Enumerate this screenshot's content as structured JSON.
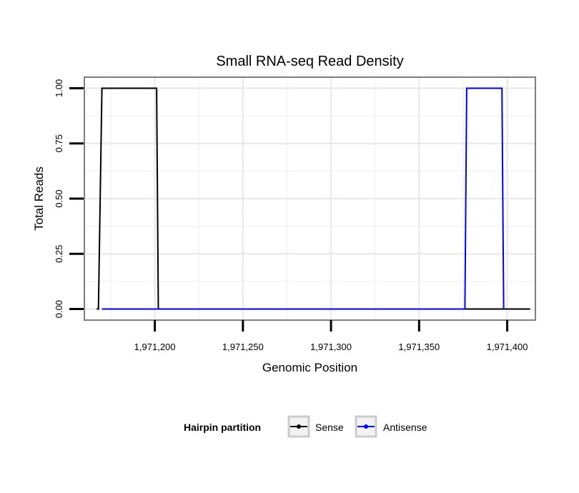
{
  "chart_data": {
    "type": "line",
    "title": "Small RNA-seq Read Density",
    "xlabel": "Genomic Position",
    "ylabel": "Total Reads",
    "xlim": [
      1971160,
      1971416
    ],
    "ylim": [
      -0.05,
      1.05
    ],
    "x_ticks": [
      1971200,
      1971250,
      1971300,
      1971350,
      1971400
    ],
    "x_tick_labels": [
      "1,971,200",
      "1,971,250",
      "1,971,300",
      "1,971,350",
      "1,971,400"
    ],
    "y_ticks": [
      0,
      0.25,
      0.5,
      0.75,
      1
    ],
    "y_tick_labels": [
      "0.00",
      "0.25",
      "0.50",
      "0.75",
      "1.00"
    ],
    "grid": true,
    "series": [
      {
        "name": "Sense",
        "color": "#000000",
        "points": [
          [
            1971167,
            0
          ],
          [
            1971168,
            0
          ],
          [
            1971170,
            1
          ],
          [
            1971201,
            1
          ],
          [
            1971202,
            0
          ],
          [
            1971413,
            0
          ]
        ]
      },
      {
        "name": "Antisense",
        "color": "#0000ff",
        "points": [
          [
            1971170,
            0
          ],
          [
            1971202,
            0
          ],
          [
            1971376,
            0
          ],
          [
            1971377,
            1
          ],
          [
            1971397,
            1
          ],
          [
            1971398,
            0
          ]
        ]
      }
    ],
    "legend": {
      "title": "Hairpin partition",
      "position": "bottom",
      "entries": [
        "Sense",
        "Antisense"
      ]
    }
  }
}
